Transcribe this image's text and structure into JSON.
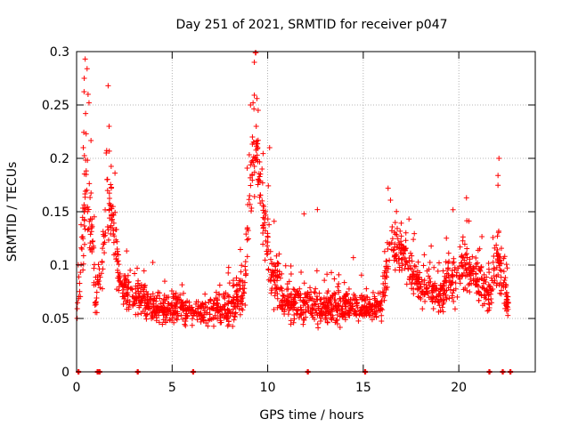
{
  "chart_data": {
    "type": "scatter",
    "title": "Day 251 of 2021, SRMTID for receiver p047",
    "xlabel": "GPS time / hours",
    "ylabel": "SRMTID / TECUs",
    "xlim": [
      0,
      24
    ],
    "ylim": [
      0,
      0.3
    ],
    "x_ticks": [
      0,
      5,
      10,
      15,
      20
    ],
    "x_tick_labels": [
      "0",
      "5",
      "10",
      "15",
      "20"
    ],
    "y_ticks": [
      0,
      0.05,
      0.1,
      0.15,
      0.2,
      0.25,
      0.3
    ],
    "y_tick_labels": [
      "0",
      "0.05",
      "0.1",
      "0.15",
      "0.2",
      "0.25",
      "0.3"
    ],
    "grid": true,
    "marker": "+",
    "color": "#ff0000",
    "zero_markers": [
      0.1,
      1.1,
      1.2,
      3.2,
      6.1,
      12.1,
      15.1,
      21.6,
      22.3,
      22.7
    ],
    "envelope": [
      {
        "t": 0.0,
        "base": 0.06,
        "spread": 0.035
      },
      {
        "t": 0.3,
        "base": 0.12,
        "spread": 0.1
      },
      {
        "t": 0.5,
        "base": 0.18,
        "spread": 0.11
      },
      {
        "t": 0.7,
        "base": 0.15,
        "spread": 0.1
      },
      {
        "t": 1.0,
        "base": 0.07,
        "spread": 0.04
      },
      {
        "t": 1.3,
        "base": 0.09,
        "spread": 0.05
      },
      {
        "t": 1.6,
        "base": 0.16,
        "spread": 0.1
      },
      {
        "t": 1.9,
        "base": 0.14,
        "spread": 0.08
      },
      {
        "t": 2.3,
        "base": 0.075,
        "spread": 0.04
      },
      {
        "t": 3.0,
        "base": 0.07,
        "spread": 0.035
      },
      {
        "t": 4.0,
        "base": 0.06,
        "spread": 0.035
      },
      {
        "t": 5.0,
        "base": 0.06,
        "spread": 0.035
      },
      {
        "t": 6.5,
        "base": 0.055,
        "spread": 0.03
      },
      {
        "t": 8.0,
        "base": 0.06,
        "spread": 0.04
      },
      {
        "t": 8.8,
        "base": 0.08,
        "spread": 0.05
      },
      {
        "t": 9.1,
        "base": 0.18,
        "spread": 0.1
      },
      {
        "t": 9.4,
        "base": 0.22,
        "spread": 0.08
      },
      {
        "t": 9.8,
        "base": 0.14,
        "spread": 0.07
      },
      {
        "t": 10.2,
        "base": 0.09,
        "spread": 0.06
      },
      {
        "t": 11.0,
        "base": 0.065,
        "spread": 0.04
      },
      {
        "t": 13.0,
        "base": 0.06,
        "spread": 0.04
      },
      {
        "t": 15.0,
        "base": 0.06,
        "spread": 0.035
      },
      {
        "t": 16.0,
        "base": 0.06,
        "spread": 0.035
      },
      {
        "t": 16.4,
        "base": 0.12,
        "spread": 0.06
      },
      {
        "t": 17.0,
        "base": 0.11,
        "spread": 0.05
      },
      {
        "t": 18.0,
        "base": 0.08,
        "spread": 0.045
      },
      {
        "t": 19.0,
        "base": 0.07,
        "spread": 0.04
      },
      {
        "t": 19.8,
        "base": 0.09,
        "spread": 0.06
      },
      {
        "t": 20.5,
        "base": 0.1,
        "spread": 0.06
      },
      {
        "t": 21.5,
        "base": 0.07,
        "spread": 0.04
      },
      {
        "t": 22.0,
        "base": 0.1,
        "spread": 0.07
      },
      {
        "t": 22.3,
        "base": 0.09,
        "spread": 0.05
      },
      {
        "t": 22.6,
        "base": 0.06,
        "spread": 0.03
      }
    ],
    "spikes": [
      {
        "x": 0.45,
        "y": 0.293
      },
      {
        "x": 0.55,
        "y": 0.284
      },
      {
        "x": 0.4,
        "y": 0.275
      },
      {
        "x": 0.6,
        "y": 0.26
      },
      {
        "x": 0.65,
        "y": 0.252
      },
      {
        "x": 0.5,
        "y": 0.223
      },
      {
        "x": 0.35,
        "y": 0.21
      },
      {
        "x": 1.65,
        "y": 0.268
      },
      {
        "x": 1.7,
        "y": 0.23
      },
      {
        "x": 1.55,
        "y": 0.205
      },
      {
        "x": 9.3,
        "y": 0.29
      },
      {
        "x": 9.1,
        "y": 0.25
      },
      {
        "x": 9.5,
        "y": 0.245
      },
      {
        "x": 9.4,
        "y": 0.23
      },
      {
        "x": 9.2,
        "y": 0.22
      },
      {
        "x": 10.1,
        "y": 0.21
      },
      {
        "x": 16.3,
        "y": 0.172
      },
      {
        "x": 20.4,
        "y": 0.163
      },
      {
        "x": 22.1,
        "y": 0.2
      },
      {
        "x": 22.05,
        "y": 0.184
      },
      {
        "x": 11.9,
        "y": 0.148
      },
      {
        "x": 12.6,
        "y": 0.152
      }
    ],
    "point_count": 1900,
    "seed": 251
  }
}
